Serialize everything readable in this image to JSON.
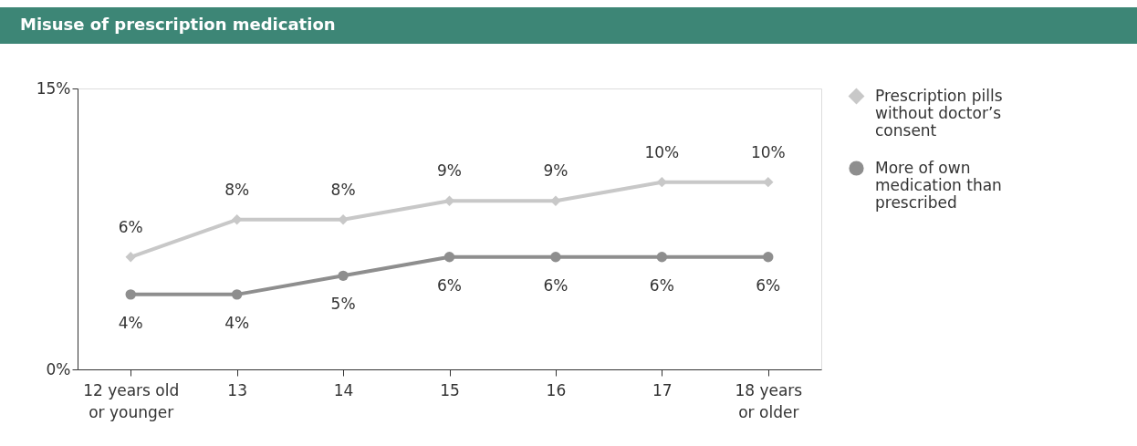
{
  "chart_data": {
    "type": "line",
    "title": "Misuse of prescription medication",
    "categories": [
      "12 years old\nor younger",
      "13",
      "14",
      "15",
      "16",
      "17",
      "18 years\nor older"
    ],
    "series": [
      {
        "name": "Prescription pills\nwithout doctor’s\nconsent",
        "color": "#c8c8c8",
        "marker": "diamond",
        "values": [
          6,
          8,
          8,
          9,
          9,
          10,
          10
        ]
      },
      {
        "name": "More of own\nmedication than\nprescribed",
        "color": "#8e8e8e",
        "marker": "circle",
        "values": [
          4,
          4,
          5,
          6,
          6,
          6,
          6
        ]
      }
    ],
    "ylim": [
      0,
      15
    ],
    "yticks": [
      {
        "value": 0,
        "label": "0%"
      },
      {
        "value": 15,
        "label": "15%"
      }
    ],
    "value_labels": [
      [
        "6%",
        "8%",
        "8%",
        "9%",
        "9%",
        "10%",
        "10%"
      ],
      [
        "4%",
        "4%",
        "5%",
        "6%",
        "6%",
        "6%",
        "6%"
      ]
    ],
    "grid": false,
    "legend": "right",
    "line_style": "solid"
  }
}
